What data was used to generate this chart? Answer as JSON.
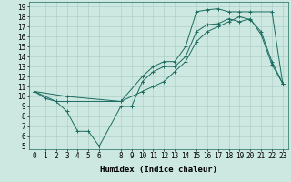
{
  "title": "",
  "xlabel": "Humidex (Indice chaleur)",
  "bg_color": "#cce8e0",
  "grid_color": "#aed0c8",
  "line_color": "#1a6b60",
  "xlim": [
    -0.5,
    23.5
  ],
  "ylim": [
    4.7,
    19.5
  ],
  "xticks": [
    0,
    1,
    2,
    3,
    4,
    5,
    6,
    8,
    9,
    10,
    11,
    12,
    13,
    14,
    15,
    16,
    17,
    18,
    19,
    20,
    21,
    22,
    23
  ],
  "yticks": [
    5,
    6,
    7,
    8,
    9,
    10,
    11,
    12,
    13,
    14,
    15,
    16,
    17,
    18,
    19
  ],
  "line1_x": [
    0,
    1,
    2,
    3,
    4,
    5,
    6,
    8,
    9,
    10,
    11,
    12,
    13,
    14,
    15,
    16,
    17,
    18,
    19,
    20,
    21,
    22,
    23
  ],
  "line1_y": [
    10.5,
    9.8,
    9.5,
    8.5,
    6.5,
    6.5,
    5.0,
    9.0,
    9.0,
    11.5,
    12.5,
    13.0,
    13.0,
    14.0,
    16.5,
    17.2,
    17.3,
    17.8,
    17.5,
    17.8,
    16.2,
    13.2,
    11.3
  ],
  "line2_x": [
    0,
    2,
    3,
    8,
    10,
    11,
    12,
    13,
    14,
    15,
    16,
    17,
    18,
    19,
    20,
    22,
    23
  ],
  "line2_y": [
    10.5,
    9.5,
    9.5,
    9.5,
    12.0,
    13.0,
    13.5,
    13.5,
    15.0,
    18.5,
    18.7,
    18.8,
    18.5,
    18.5,
    18.5,
    18.5,
    11.3
  ],
  "line3_x": [
    0,
    3,
    8,
    10,
    11,
    12,
    13,
    14,
    15,
    16,
    17,
    18,
    19,
    20,
    21,
    22,
    23
  ],
  "line3_y": [
    10.5,
    10.0,
    9.5,
    10.5,
    11.0,
    11.5,
    12.5,
    13.5,
    15.5,
    16.5,
    17.0,
    17.5,
    18.0,
    17.7,
    16.5,
    13.5,
    11.3
  ],
  "tick_fontsize": 5.5,
  "xlabel_fontsize": 6.5
}
